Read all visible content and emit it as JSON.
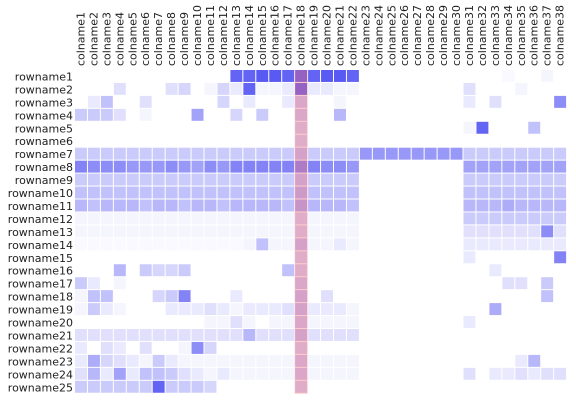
{
  "chart_data": {
    "type": "heatmap",
    "title": "",
    "xlabel": "",
    "ylabel": "",
    "grid": false,
    "colors": {
      "low": "#ffffff",
      "high": "#3030f0",
      "highlight": "#ff8080"
    },
    "highlight_column": "colname18",
    "zrange": [
      0,
      1
    ],
    "columns": [
      "colname1",
      "colname2",
      "colname3",
      "colname4",
      "colname5",
      "colname6",
      "colname7",
      "colname8",
      "colname9",
      "colname10",
      "colname11",
      "colname12",
      "colname13",
      "colname14",
      "colname15",
      "colname16",
      "colname17",
      "colname18",
      "colname19",
      "colname20",
      "colname21",
      "colname22",
      "colname23",
      "colname24",
      "colname25",
      "colname26",
      "colname27",
      "colname28",
      "colname29",
      "colname30",
      "colname31",
      "colname32",
      "colname33",
      "colname34",
      "colname35",
      "colname36",
      "colname37",
      "colname38"
    ],
    "rows": [
      "rowname1",
      "rowname2",
      "rowname3",
      "rowname4",
      "rowname5",
      "rowname6",
      "rowname7",
      "rowname8",
      "rowname9",
      "rowname10",
      "rowname11",
      "rowname12",
      "rowname13",
      "rowname14",
      "rowname15",
      "rowname16",
      "rowname17",
      "rowname18",
      "rowname19",
      "rowname20",
      "rowname21",
      "rowname22",
      "rowname23",
      "rowname24",
      "rowname25"
    ],
    "values": [
      [
        0,
        0,
        0,
        0,
        0,
        0,
        0,
        0,
        0,
        0,
        0,
        0,
        0.75,
        0.75,
        0.8,
        0.8,
        0.75,
        0.85,
        0.75,
        0.8,
        0.8,
        0.75,
        0,
        0,
        0,
        0,
        0,
        0,
        0,
        0,
        0,
        0,
        0,
        0.03,
        0,
        0,
        0.05,
        0
      ],
      [
        0,
        0,
        0,
        0.15,
        0,
        0,
        0,
        0.15,
        0.2,
        0,
        0.05,
        0.2,
        0.1,
        0.75,
        0.05,
        0.05,
        0.1,
        0.85,
        0.1,
        0.1,
        0.05,
        0.05,
        0,
        0,
        0,
        0,
        0,
        0,
        0,
        0,
        0.15,
        0,
        0,
        0,
        0.05,
        0,
        0,
        0
      ],
      [
        0,
        0.1,
        0.3,
        0,
        0,
        0.15,
        0,
        0,
        0,
        0,
        0,
        0.2,
        0,
        0.1,
        0,
        0,
        0.1,
        0.3,
        0,
        0,
        0.05,
        0,
        0,
        0,
        0,
        0,
        0,
        0,
        0,
        0,
        0.1,
        0,
        0.15,
        0,
        0,
        0,
        0,
        0.55
      ],
      [
        0.25,
        0.25,
        0.25,
        0.15,
        0,
        0.05,
        0,
        0,
        0,
        0.45,
        0,
        0,
        0.2,
        0,
        0.25,
        0,
        0,
        0.3,
        0,
        0,
        0.35,
        0,
        0,
        0,
        0,
        0,
        0,
        0,
        0,
        0,
        0,
        0,
        0,
        0,
        0,
        0,
        0,
        0
      ],
      [
        0,
        0,
        0,
        0,
        0,
        0,
        0,
        0,
        0,
        0,
        0,
        0,
        0,
        0,
        0,
        0,
        0,
        0.25,
        0,
        0,
        0,
        0,
        0,
        0,
        0,
        0,
        0,
        0,
        0,
        0,
        0.05,
        0.75,
        0,
        0,
        0,
        0.3,
        0,
        0
      ],
      [
        0,
        0,
        0,
        0,
        0,
        0,
        0,
        0,
        0,
        0,
        0,
        0,
        0,
        0,
        0,
        0,
        0,
        0.25,
        0,
        0,
        0,
        0,
        0,
        0,
        0,
        0,
        0,
        0,
        0,
        0,
        0,
        0,
        0,
        0,
        0,
        0,
        0,
        0
      ],
      [
        0.25,
        0.25,
        0.25,
        0.25,
        0.25,
        0.25,
        0.25,
        0.25,
        0.25,
        0.25,
        0.25,
        0.25,
        0.25,
        0.25,
        0.25,
        0.25,
        0.25,
        0.35,
        0.25,
        0.25,
        0.25,
        0.25,
        0.5,
        0.5,
        0.5,
        0.5,
        0.5,
        0.5,
        0.5,
        0.5,
        0.25,
        0.25,
        0.25,
        0.25,
        0.25,
        0.25,
        0.25,
        0.25
      ],
      [
        0.6,
        0.55,
        0.55,
        0.55,
        0.5,
        0.5,
        0.5,
        0.55,
        0.5,
        0.45,
        0.55,
        0.5,
        0.6,
        0.6,
        0.6,
        0.6,
        0.6,
        0.65,
        0.6,
        0.55,
        0.55,
        0.5,
        0,
        0,
        0,
        0,
        0,
        0,
        0,
        0,
        0.45,
        0.45,
        0.45,
        0.45,
        0.45,
        0.45,
        0.45,
        0.45
      ],
      [
        0.25,
        0.25,
        0.25,
        0.25,
        0.25,
        0.25,
        0.25,
        0.25,
        0.25,
        0.25,
        0.25,
        0.25,
        0.25,
        0.25,
        0.25,
        0.25,
        0.25,
        0.35,
        0.25,
        0.25,
        0.25,
        0.25,
        0,
        0,
        0,
        0,
        0,
        0,
        0,
        0,
        0.25,
        0.25,
        0.25,
        0.25,
        0.25,
        0.25,
        0.25,
        0.25
      ],
      [
        0.3,
        0.3,
        0.3,
        0.3,
        0.3,
        0.3,
        0.3,
        0.3,
        0.3,
        0.3,
        0.3,
        0.3,
        0.3,
        0.3,
        0.3,
        0.3,
        0.3,
        0.4,
        0.3,
        0.3,
        0.3,
        0.3,
        0,
        0,
        0,
        0,
        0,
        0,
        0,
        0,
        0.3,
        0.3,
        0.3,
        0.3,
        0.3,
        0.3,
        0.3,
        0.3
      ],
      [
        0.35,
        0.3,
        0.35,
        0.35,
        0.35,
        0.3,
        0.35,
        0.35,
        0.3,
        0.35,
        0.35,
        0.3,
        0.35,
        0.35,
        0.35,
        0.35,
        0.3,
        0.45,
        0.35,
        0.35,
        0.35,
        0.3,
        0,
        0,
        0,
        0,
        0,
        0,
        0,
        0,
        0.35,
        0.35,
        0.35,
        0.4,
        0.35,
        0.35,
        0.35,
        0.35
      ],
      [
        0.05,
        0.05,
        0.05,
        0.05,
        0.05,
        0.05,
        0.05,
        0.05,
        0.05,
        0.05,
        0.05,
        0.05,
        0.05,
        0.05,
        0.05,
        0.05,
        0.05,
        0.25,
        0.05,
        0.05,
        0.05,
        0.05,
        0,
        0,
        0,
        0,
        0,
        0,
        0,
        0,
        0.25,
        0.25,
        0.25,
        0.25,
        0.25,
        0.25,
        0.25,
        0.25
      ],
      [
        0.05,
        0.05,
        0.05,
        0.05,
        0.05,
        0.05,
        0.05,
        0.05,
        0.05,
        0.05,
        0.05,
        0.05,
        0.05,
        0.05,
        0.05,
        0.05,
        0.05,
        0.25,
        0.05,
        0.05,
        0.05,
        0.05,
        0,
        0,
        0,
        0,
        0,
        0,
        0,
        0,
        0.15,
        0.15,
        0.15,
        0.15,
        0.15,
        0.15,
        0.55,
        0.15
      ],
      [
        0.03,
        0.03,
        0.03,
        0.03,
        0.03,
        0.03,
        0.03,
        0.03,
        0.03,
        0.03,
        0.03,
        0.03,
        0.03,
        0.05,
        0.3,
        0.05,
        0.05,
        0.35,
        0.05,
        0.05,
        0.1,
        0.05,
        0,
        0,
        0,
        0,
        0,
        0,
        0,
        0,
        0.1,
        0.1,
        0.1,
        0.1,
        0.1,
        0.1,
        0.1,
        0.1
      ],
      [
        0,
        0,
        0,
        0,
        0,
        0,
        0,
        0,
        0,
        0,
        0,
        0,
        0,
        0,
        0,
        0,
        0,
        0.25,
        0,
        0,
        0,
        0,
        0,
        0,
        0,
        0,
        0,
        0,
        0,
        0,
        0.1,
        0,
        0,
        0,
        0,
        0,
        0,
        0.6
      ],
      [
        0,
        0,
        0,
        0.35,
        0,
        0.25,
        0.2,
        0.2,
        0.25,
        0,
        0,
        0,
        0,
        0,
        0,
        0,
        0.3,
        0.25,
        0,
        0,
        0,
        0,
        0,
        0,
        0,
        0,
        0,
        0,
        0,
        0,
        0,
        0,
        0.1,
        0,
        0,
        0,
        0,
        0
      ],
      [
        0.25,
        0.1,
        0,
        0.05,
        0,
        0,
        0,
        0,
        0,
        0,
        0,
        0,
        0,
        0,
        0,
        0,
        0,
        0.3,
        0,
        0,
        0,
        0,
        0,
        0,
        0,
        0,
        0,
        0,
        0,
        0,
        0,
        0,
        0,
        0.15,
        0.15,
        0,
        0.25,
        0
      ],
      [
        0.05,
        0.3,
        0.3,
        0,
        0,
        0,
        0.2,
        0.25,
        0.6,
        0,
        0,
        0,
        0.1,
        0,
        0,
        0,
        0,
        0.35,
        0,
        0.15,
        0,
        0,
        0,
        0,
        0,
        0,
        0,
        0,
        0,
        0,
        0,
        0,
        0,
        0,
        0,
        0,
        0.3,
        0
      ],
      [
        0.05,
        0.25,
        0.1,
        0.05,
        0,
        0,
        0,
        0.1,
        0.1,
        0.1,
        0.15,
        0.1,
        0.05,
        0.1,
        0.1,
        0.1,
        0.15,
        0.35,
        0.1,
        0.1,
        0.1,
        0.05,
        0,
        0,
        0,
        0,
        0,
        0,
        0,
        0,
        0,
        0,
        0.4,
        0,
        0,
        0,
        0,
        0
      ],
      [
        0,
        0,
        0,
        0,
        0,
        0,
        0,
        0,
        0,
        0,
        0.05,
        0.05,
        0.15,
        0.05,
        0,
        0.05,
        0.05,
        0.3,
        0.05,
        0.05,
        0.05,
        0.05,
        0,
        0,
        0,
        0,
        0,
        0,
        0,
        0,
        0.1,
        0,
        0,
        0,
        0,
        0,
        0,
        0
      ],
      [
        0.15,
        0.15,
        0.15,
        0.15,
        0.15,
        0.15,
        0.15,
        0.15,
        0.15,
        0.15,
        0.15,
        0.15,
        0.15,
        0.35,
        0.15,
        0.15,
        0.15,
        0.35,
        0.15,
        0.15,
        0.15,
        0.15,
        0,
        0,
        0,
        0,
        0,
        0,
        0,
        0,
        0,
        0,
        0,
        0,
        0,
        0,
        0,
        0
      ],
      [
        0.1,
        0,
        0.15,
        0.1,
        0,
        0.15,
        0,
        0,
        0.05,
        0.55,
        0.2,
        0,
        0,
        0,
        0,
        0,
        0,
        0.25,
        0,
        0,
        0,
        0,
        0,
        0,
        0,
        0,
        0,
        0,
        0,
        0,
        0,
        0,
        0,
        0,
        0,
        0,
        0,
        0
      ],
      [
        0.1,
        0.4,
        0.2,
        0.15,
        0.1,
        0.05,
        0.25,
        0.1,
        0.05,
        0.05,
        0.05,
        0.05,
        0.05,
        0.05,
        0.05,
        0.05,
        0.05,
        0.3,
        0.05,
        0.05,
        0.05,
        0.05,
        0,
        0,
        0,
        0,
        0,
        0,
        0,
        0,
        0,
        0,
        0,
        0,
        0.1,
        0.35,
        0,
        0
      ],
      [
        0.15,
        0.35,
        0.1,
        0.45,
        0.1,
        0.3,
        0.3,
        0.25,
        0.15,
        0.1,
        0.05,
        0.1,
        0.05,
        0.05,
        0.05,
        0.05,
        0.05,
        0.3,
        0.05,
        0.05,
        0.05,
        0.05,
        0,
        0,
        0,
        0,
        0,
        0,
        0,
        0,
        0.15,
        0,
        0.1,
        0.1,
        0.15,
        0.1,
        0.15,
        0.15
      ],
      [
        0.25,
        0.25,
        0.25,
        0.25,
        0.25,
        0.25,
        0.75,
        0.25,
        0.25,
        0.25,
        0.2,
        0,
        0,
        0,
        0,
        0,
        0,
        0.25,
        0,
        0,
        0,
        0,
        0,
        0,
        0,
        0,
        0,
        0,
        0,
        0,
        0,
        0,
        0,
        0,
        0,
        0,
        0,
        0
      ]
    ]
  }
}
